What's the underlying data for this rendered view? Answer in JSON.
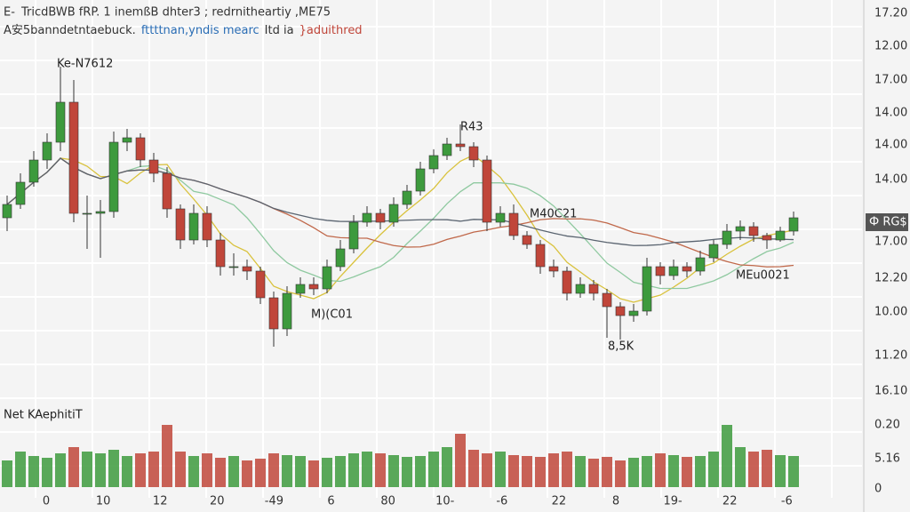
{
  "header": {
    "icon": "E-",
    "line1": "TricdBWB fRP. 1 inemßB dhter3 ; redrnitheartiy ,ME75",
    "line2": [
      {
        "text": "A安5banndetntaebuck.",
        "color": "#333333"
      },
      {
        "text": "fttttnan,yndis mearc",
        "color": "#2a6db5"
      },
      {
        "text": "Itd ia",
        "color": "#333333"
      },
      {
        "text": "}aduithred",
        "color": "#c0463a"
      }
    ]
  },
  "chart": {
    "price_lim": [
      0,
      380
    ],
    "volume_lim": [
      0,
      100
    ],
    "up_color": "#3d9a3d",
    "down_color": "#c0463a",
    "lines": [
      {
        "period": 5,
        "color": "#d9c23c"
      },
      {
        "period": 10,
        "color": "#8fc9a0"
      },
      {
        "period": 20,
        "color": "#c0684a"
      },
      {
        "period": 30,
        "color": "#5a6470"
      }
    ],
    "candles": [
      [
        175,
        200,
        160,
        190
      ],
      [
        190,
        225,
        185,
        215
      ],
      [
        215,
        250,
        210,
        240
      ],
      [
        240,
        270,
        230,
        260
      ],
      [
        260,
        345,
        250,
        305
      ],
      [
        305,
        330,
        170,
        180
      ],
      [
        180,
        200,
        140,
        180
      ],
      [
        180,
        195,
        130,
        182
      ],
      [
        182,
        272,
        175,
        260
      ],
      [
        260,
        275,
        250,
        265
      ],
      [
        265,
        270,
        232,
        240
      ],
      [
        240,
        248,
        215,
        225
      ],
      [
        225,
        232,
        175,
        185
      ],
      [
        185,
        190,
        140,
        150
      ],
      [
        150,
        190,
        145,
        180
      ],
      [
        180,
        188,
        142,
        150
      ],
      [
        150,
        158,
        110,
        120
      ],
      [
        120,
        135,
        110,
        120
      ],
      [
        120,
        128,
        105,
        115
      ],
      [
        115,
        120,
        78,
        85
      ],
      [
        85,
        92,
        30,
        50
      ],
      [
        50,
        98,
        42,
        90
      ],
      [
        90,
        108,
        85,
        100
      ],
      [
        100,
        108,
        88,
        95
      ],
      [
        95,
        128,
        90,
        120
      ],
      [
        120,
        150,
        115,
        140
      ],
      [
        140,
        178,
        135,
        170
      ],
      [
        170,
        188,
        165,
        180
      ],
      [
        180,
        185,
        162,
        170
      ],
      [
        170,
        198,
        165,
        190
      ],
      [
        190,
        212,
        185,
        205
      ],
      [
        205,
        238,
        200,
        230
      ],
      [
        230,
        252,
        225,
        245
      ],
      [
        245,
        265,
        240,
        258
      ],
      [
        258,
        280,
        250,
        255
      ],
      [
        255,
        260,
        232,
        240
      ],
      [
        240,
        245,
        160,
        170
      ],
      [
        170,
        188,
        165,
        180
      ],
      [
        180,
        190,
        150,
        155
      ],
      [
        155,
        160,
        140,
        145
      ],
      [
        145,
        150,
        112,
        120
      ],
      [
        120,
        128,
        108,
        115
      ],
      [
        115,
        120,
        82,
        90
      ],
      [
        90,
        108,
        85,
        100
      ],
      [
        100,
        105,
        82,
        90
      ],
      [
        90,
        95,
        40,
        75
      ],
      [
        75,
        80,
        38,
        65
      ],
      [
        65,
        78,
        58,
        70
      ],
      [
        70,
        130,
        65,
        120
      ],
      [
        120,
        125,
        100,
        110
      ],
      [
        110,
        128,
        105,
        120
      ],
      [
        120,
        125,
        108,
        115
      ],
      [
        115,
        138,
        110,
        130
      ],
      [
        130,
        150,
        125,
        145
      ],
      [
        145,
        168,
        140,
        160
      ],
      [
        160,
        172,
        150,
        165
      ],
      [
        165,
        170,
        148,
        155
      ],
      [
        155,
        158,
        140,
        150
      ],
      [
        150,
        165,
        148,
        160
      ],
      [
        160,
        182,
        155,
        175
      ]
    ],
    "volume": [
      30,
      40,
      35,
      33,
      38,
      45,
      40,
      38,
      42,
      35,
      38,
      40,
      70,
      40,
      35,
      38,
      33,
      35,
      30,
      32,
      38,
      36,
      35,
      30,
      33,
      35,
      38,
      40,
      38,
      36,
      34,
      35,
      40,
      45,
      60,
      42,
      38,
      40,
      36,
      35,
      34,
      38,
      40,
      35,
      32,
      34,
      30,
      33,
      35,
      38,
      36,
      34,
      35,
      40,
      70,
      45,
      40,
      42,
      36,
      35
    ],
    "annotations": [
      "Ke-N7612",
      "R43",
      "M40C21",
      "MEu0021",
      "M)(C01",
      "8,5K"
    ],
    "volume_label": "Net KAephitiT",
    "price_labels": [
      "17.20",
      "12.00",
      "17.00",
      "14.00",
      "14.00",
      "14.00",
      "17.00",
      "12.20",
      "10.00",
      "11.20",
      "16.10",
      "0.20",
      "5.16",
      "0"
    ],
    "price_badge": "Ф RG$",
    "time_labels": [
      "0",
      "10",
      "12",
      "20",
      "-49",
      "6",
      "80",
      "10-",
      "-6",
      "22",
      "8",
      "19-",
      "22",
      "-6"
    ]
  }
}
